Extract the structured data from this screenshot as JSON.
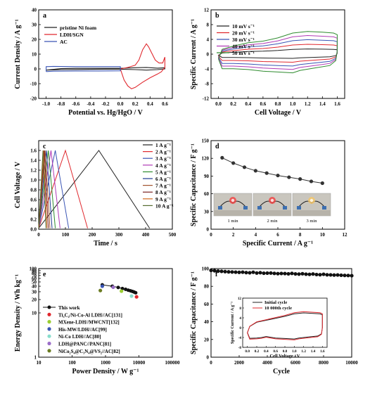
{
  "chart_data": [
    {
      "panel": "a",
      "type": "line",
      "xlabel": "Potential vs. Hg/HgO / V",
      "ylabel": "Current Density / A g⁻¹",
      "xlim": [
        -1.1,
        0.7
      ],
      "ylim": [
        -20,
        40
      ],
      "xticks": [
        -1.0,
        -0.8,
        -0.6,
        -0.4,
        -0.2,
        0.0,
        0.2,
        0.4,
        0.6
      ],
      "yticks": [
        -20,
        -10,
        0,
        10,
        20,
        30,
        40
      ],
      "legend": "top-left",
      "series": [
        {
          "name": "pristine Ni foam",
          "color": "#222222",
          "closed": true,
          "points": [
            [
              -1.0,
              -0.8
            ],
            [
              -0.8,
              -0.5
            ],
            [
              -0.6,
              -0.4
            ],
            [
              -0.4,
              -0.3
            ],
            [
              -0.2,
              -0.2
            ],
            [
              0.0,
              -0.2
            ],
            [
              0.2,
              -0.5
            ],
            [
              0.35,
              -0.8
            ],
            [
              0.5,
              -0.5
            ],
            [
              0.6,
              0.0
            ],
            [
              0.6,
              0.8
            ],
            [
              0.5,
              0.5
            ],
            [
              0.35,
              1.0
            ],
            [
              0.2,
              0.8
            ],
            [
              0.0,
              0.4
            ],
            [
              -0.2,
              0.4
            ],
            [
              -0.4,
              0.4
            ],
            [
              -0.6,
              0.4
            ],
            [
              -0.8,
              0.2
            ],
            [
              -1.0,
              -0.8
            ]
          ]
        },
        {
          "name": "LDH/SGN",
          "color": "#e0282e",
          "closed": true,
          "points": [
            [
              0.0,
              0.0
            ],
            [
              0.02,
              -3
            ],
            [
              0.05,
              -7.5
            ],
            [
              0.1,
              -11.5
            ],
            [
              0.15,
              -13.5
            ],
            [
              0.2,
              -12.5
            ],
            [
              0.3,
              -9
            ],
            [
              0.4,
              -6
            ],
            [
              0.5,
              -3.5
            ],
            [
              0.55,
              -2
            ],
            [
              0.6,
              1
            ],
            [
              0.6,
              8
            ],
            [
              0.57,
              4
            ],
            [
              0.52,
              4
            ],
            [
              0.47,
              6
            ],
            [
              0.42,
              11
            ],
            [
              0.38,
              15
            ],
            [
              0.35,
              17
            ],
            [
              0.3,
              13
            ],
            [
              0.25,
              6
            ],
            [
              0.2,
              2.5
            ],
            [
              0.1,
              1
            ],
            [
              0.0,
              0.0
            ]
          ]
        },
        {
          "name": "AC",
          "color": "#3a55b5",
          "closed": true,
          "points": [
            [
              -1.0,
              -1.8
            ],
            [
              -0.9,
              -1.5
            ],
            [
              -0.6,
              -1.4
            ],
            [
              -0.3,
              -1.4
            ],
            [
              0.0,
              -1.3
            ],
            [
              0.0,
              1.5
            ],
            [
              -0.3,
              1.5
            ],
            [
              -0.6,
              1.5
            ],
            [
              -0.9,
              1.7
            ],
            [
              -1.0,
              1.5
            ],
            [
              -1.0,
              -1.8
            ]
          ]
        }
      ]
    },
    {
      "panel": "b",
      "type": "line",
      "xlabel": "Cell Voltage / V",
      "ylabel": "Specific Current / A g⁻¹",
      "xlim": [
        -0.1,
        1.7
      ],
      "ylim": [
        -12,
        12
      ],
      "xticks": [
        0.0,
        0.2,
        0.4,
        0.6,
        0.8,
        1.0,
        1.2,
        1.4,
        1.6
      ],
      "yticks": [
        -12,
        -8,
        -4,
        0,
        4,
        8,
        12
      ],
      "legend": "top-left",
      "series": [
        {
          "name": "10 mV s⁻¹",
          "color": "#222222",
          "scale": 1.0
        },
        {
          "name": "20 mV s⁻¹",
          "color": "#e0282e",
          "scale": 1.9
        },
        {
          "name": "30 mV s⁻¹",
          "color": "#3a55b5",
          "scale": 2.8
        },
        {
          "name": "40 mV s⁻¹",
          "color": "#b03ab5",
          "scale": 3.6
        },
        {
          "name": "50 mV s⁻¹",
          "color": "#2e8b2e",
          "scale": 4.4
        }
      ],
      "base_shape": {
        "upper": [
          [
            0.0,
            -0.3
          ],
          [
            0.05,
            0.3
          ],
          [
            0.2,
            0.5
          ],
          [
            0.4,
            0.7
          ],
          [
            0.6,
            0.8
          ],
          [
            0.8,
            1.0
          ],
          [
            1.0,
            1.3
          ],
          [
            1.2,
            1.4
          ],
          [
            1.4,
            1.35
          ],
          [
            1.55,
            1.3
          ],
          [
            1.6,
            1.2
          ]
        ],
        "lower": [
          [
            1.6,
            1.2
          ],
          [
            1.6,
            0.2
          ],
          [
            1.58,
            -0.4
          ],
          [
            1.5,
            -0.7
          ],
          [
            1.3,
            -0.85
          ],
          [
            1.1,
            -1.0
          ],
          [
            1.0,
            -1.15
          ],
          [
            0.8,
            -1.1
          ],
          [
            0.6,
            -1.05
          ],
          [
            0.4,
            -0.95
          ],
          [
            0.2,
            -0.9
          ],
          [
            0.05,
            -0.9
          ],
          [
            0.0,
            -0.3
          ]
        ]
      }
    },
    {
      "panel": "c",
      "type": "line",
      "xlabel": "Time / s",
      "ylabel": "Cell Voltage / V",
      "xlim": [
        0,
        500
      ],
      "ylim": [
        0,
        1.8
      ],
      "xticks": [
        0,
        100,
        200,
        300,
        400,
        500
      ],
      "yticks": [
        0.0,
        0.2,
        0.4,
        0.6,
        0.8,
        1.0,
        1.2,
        1.4,
        1.6
      ],
      "legend": "top-right",
      "series": [
        {
          "name": "1 A g⁻¹",
          "color": "#222222",
          "charge": 225,
          "total": 415
        },
        {
          "name": "2 A g⁻¹",
          "color": "#e0282e",
          "charge": 100,
          "total": 183
        },
        {
          "name": "3 A g⁻¹",
          "color": "#3a55b5",
          "charge": 62,
          "total": 112
        },
        {
          "name": "4 A g⁻¹",
          "color": "#b03ab5",
          "charge": 46,
          "total": 80
        },
        {
          "name": "5 A g⁻¹",
          "color": "#2e8b2e",
          "charge": 36,
          "total": 62
        },
        {
          "name": "6 A g⁻¹",
          "color": "#1f3a93",
          "charge": 29,
          "total": 50
        },
        {
          "name": "7 A g⁻¹",
          "color": "#a0522d",
          "charge": 24,
          "total": 42
        },
        {
          "name": "8 A g⁻¹",
          "color": "#7a1f1f",
          "charge": 21,
          "total": 36
        },
        {
          "name": "9 A g⁻¹",
          "color": "#d2691e",
          "charge": 18,
          "total": 31
        },
        {
          "name": "10 A g⁻¹",
          "color": "#556b2f",
          "charge": 16,
          "total": 27
        }
      ]
    },
    {
      "panel": "d",
      "type": "scatter",
      "xlabel": "Specific Current / A g⁻¹",
      "ylabel": "Specific Capacitance / F g⁻¹",
      "xlim": [
        0,
        12
      ],
      "ylim": [
        0,
        150
      ],
      "xticks": [
        0,
        2,
        4,
        6,
        8,
        10,
        12
      ],
      "yticks": [
        0,
        30,
        60,
        90,
        120,
        150
      ],
      "x": [
        1,
        2,
        3,
        4,
        5,
        6,
        7,
        8,
        9,
        10
      ],
      "y": [
        121,
        112,
        105,
        99,
        95,
        91,
        88,
        85,
        81,
        78
      ],
      "inset_labels": [
        "1 min",
        "2 min",
        "3 min"
      ]
    },
    {
      "panel": "e",
      "type": "scatter",
      "xlabel": "Power Density / W g⁻¹",
      "ylabel": "Energy Density / Wh kg⁻¹",
      "xscale": "log",
      "yscale": "log",
      "xlim": [
        10,
        100000
      ],
      "ylim": [
        1,
        100
      ],
      "xticks": [
        10,
        100,
        1000,
        10000,
        100000
      ],
      "yticks": [
        1,
        10,
        20,
        30,
        40,
        50,
        60,
        70,
        80,
        90,
        100
      ],
      "legend": "left",
      "series": [
        {
          "name": "This work",
          "color": "#111111",
          "marker": "circle-line",
          "x": [
            800,
            1600,
            2400,
            3200,
            4000,
            4800,
            5600,
            6400,
            7200,
            8000
          ],
          "y": [
            43,
            40,
            37.5,
            35.5,
            34,
            32.5,
            31.5,
            30.5,
            29.5,
            28.5
          ]
        },
        {
          "name": "Ti₃C₂/Ni-Co-Al LDH//AC[131]",
          "color": "#e0282e",
          "x": [
            8500
          ],
          "y": [
            23
          ]
        },
        {
          "name": "MXene-LDH//MWCNT[132]",
          "color": "#9acd32",
          "x": [
            3000
          ],
          "y": [
            31
          ]
        },
        {
          "name": "His-MW/LDH//AC[99]",
          "color": "#3a55b5",
          "x": [
            800
          ],
          "y": [
            40
          ]
        },
        {
          "name": "Ni-Co LDH//AC[80]",
          "color": "#88ddcc",
          "x": [
            6000
          ],
          "y": [
            24
          ]
        },
        {
          "name": "LDH@PANC//PANC[81]",
          "color": "#9b6ec8",
          "x": [
            1700
          ],
          "y": [
            38
          ]
        },
        {
          "name": "NiCo₂S₄@C₃N₄@VS₂//AC[82]",
          "color": "#6b7c23",
          "x": [
            700
          ],
          "y": [
            32
          ]
        }
      ]
    },
    {
      "panel": "f",
      "type": "scatter",
      "xlabel": "Cycle",
      "ylabel": "Specific Capacitance / F g⁻¹",
      "xlim": [
        0,
        10000
      ],
      "ylim": [
        0,
        100
      ],
      "xticks": [
        0,
        2000,
        4000,
        6000,
        8000,
        10000
      ],
      "yticks": [
        0,
        20,
        40,
        60,
        80,
        100
      ],
      "x": [
        0,
        250,
        500,
        750,
        1000,
        1250,
        1500,
        1750,
        2000,
        2250,
        2500,
        2750,
        3000,
        3250,
        3500,
        3750,
        4000,
        4250,
        4500,
        4750,
        5000,
        5250,
        5500,
        5750,
        6000,
        6250,
        6500,
        6750,
        7000,
        7250,
        7500,
        7750,
        8000,
        8250,
        8500,
        8750,
        9000,
        9250,
        9500,
        9750,
        10000
      ],
      "y": [
        98,
        97.6,
        97.2,
        96.9,
        96.6,
        96.3,
        96.2,
        96,
        95.8,
        96,
        95.5,
        95.3,
        95.9,
        95,
        95.4,
        94.8,
        94.9,
        95,
        94.6,
        94.3,
        94.5,
        94.4,
        94.1,
        94.6,
        94,
        93.8,
        94.2,
        93.7,
        93.5,
        93.9,
        93.3,
        93.1,
        93.6,
        93,
        92.9,
        92.7,
        92.8,
        92.5,
        92.3,
        92.2,
        92
      ],
      "inset": {
        "xlabel": "Cell Voltage / V",
        "ylabel": "Specific Current / A g⁻¹",
        "xlim": [
          -0.1,
          1.7
        ],
        "ylim": [
          -8,
          12
        ],
        "xticks": [
          0.0,
          0.2,
          0.4,
          0.6,
          0.8,
          1.0,
          1.2,
          1.4,
          1.6
        ],
        "yticks": [
          -8,
          -4,
          0,
          4,
          8,
          12
        ],
        "legend": "top-left",
        "series": [
          {
            "name": "Initial cycle",
            "color": "#222222",
            "scale": 1.0
          },
          {
            "name": "10 000th cycle",
            "color": "#e0282e",
            "scale": 1.08
          }
        ],
        "base_shape": {
          "upper": [
            [
              0.0,
              -2.0
            ],
            [
              0.05,
              0.5
            ],
            [
              0.2,
              2.2
            ],
            [
              0.4,
              3.0
            ],
            [
              0.6,
              3.8
            ],
            [
              0.8,
              4.6
            ],
            [
              1.0,
              5.6
            ],
            [
              1.2,
              6.0
            ],
            [
              1.4,
              5.8
            ],
            [
              1.55,
              5.6
            ],
            [
              1.6,
              5.2
            ]
          ],
          "lower": [
            [
              1.6,
              5.2
            ],
            [
              1.6,
              0.0
            ],
            [
              1.58,
              -2.5
            ],
            [
              1.5,
              -3.4
            ],
            [
              1.3,
              -3.8
            ],
            [
              1.1,
              -4.2
            ],
            [
              1.0,
              -4.6
            ],
            [
              0.8,
              -4.4
            ],
            [
              0.6,
              -4.2
            ],
            [
              0.4,
              -3.6
            ],
            [
              0.3,
              -4.0
            ],
            [
              0.2,
              -4.2
            ],
            [
              0.05,
              -4.3
            ],
            [
              0.0,
              -2.0
            ]
          ]
        }
      }
    }
  ]
}
